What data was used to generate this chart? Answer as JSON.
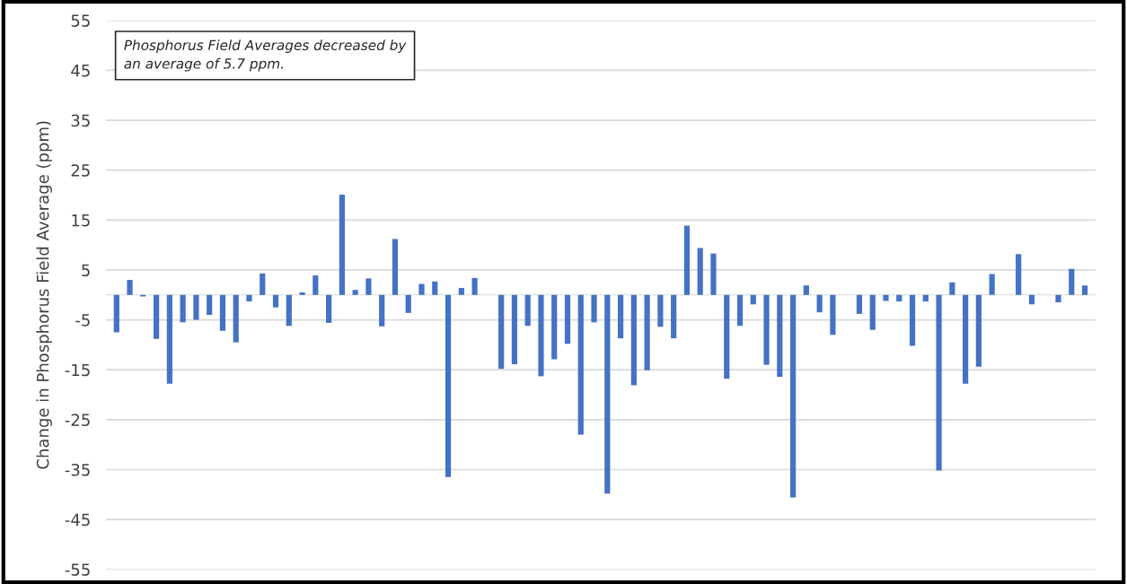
{
  "chart_data": {
    "type": "bar",
    "ylabel": "Change in Phosphorus Field Average (ppm)",
    "categories": [
      null,
      null,
      null,
      null,
      null,
      null,
      null,
      null,
      null,
      null,
      null,
      null,
      null,
      null,
      null,
      null,
      null,
      null,
      null,
      null,
      null,
      null,
      null,
      null,
      null,
      null,
      null,
      null,
      null,
      null,
      null,
      null,
      null,
      null,
      null,
      null,
      null,
      null,
      null,
      null,
      null,
      null,
      null,
      null,
      null,
      null,
      null,
      null,
      null,
      null,
      null,
      null,
      null,
      null,
      null,
      null,
      null,
      null,
      null,
      null,
      null,
      null,
      null,
      null,
      null,
      null,
      null,
      null,
      null,
      null,
      null,
      null,
      null,
      null
    ],
    "values": [
      -7.5,
      3,
      -0.3,
      -8.8,
      -17.8,
      -5.5,
      -5,
      -4,
      -7.2,
      -9.5,
      -1.3,
      4.3,
      -2.5,
      -6.2,
      0.5,
      3.9,
      -5.6,
      20.1,
      1,
      3.3,
      -6.3,
      11.2,
      -3.6,
      2.2,
      2.7,
      -36.5,
      1.4,
      3.4,
      0,
      -14.8,
      -13.9,
      -6.2,
      -16.3,
      -12.9,
      -9.8,
      -28,
      -5.5,
      -39.8,
      -8.7,
      -18.1,
      -15.1,
      -6.4,
      -8.7,
      13.9,
      9.4,
      8.3,
      -16.8,
      -6.2,
      -1.9,
      -14,
      -16.4,
      -40.6,
      1.9,
      -3.5,
      -8,
      0,
      -3.8,
      -7,
      -1.2,
      -1.3,
      -10.2,
      -1.3,
      -35.2,
      2.5,
      -17.8,
      -14.4,
      4.2,
      0,
      8.2,
      -1.9,
      0,
      -1.5,
      5.2,
      1.9
    ],
    "color": "#4472c4",
    "ylim": [
      -55,
      55
    ],
    "yticks": [
      -55,
      -45,
      -35,
      -25,
      -15,
      -5,
      5,
      15,
      25,
      35,
      45,
      55
    ],
    "grid": "y",
    "annotations": [
      "Phosphorus Field Averages decreased by\nan average of 5.7 ppm."
    ]
  }
}
